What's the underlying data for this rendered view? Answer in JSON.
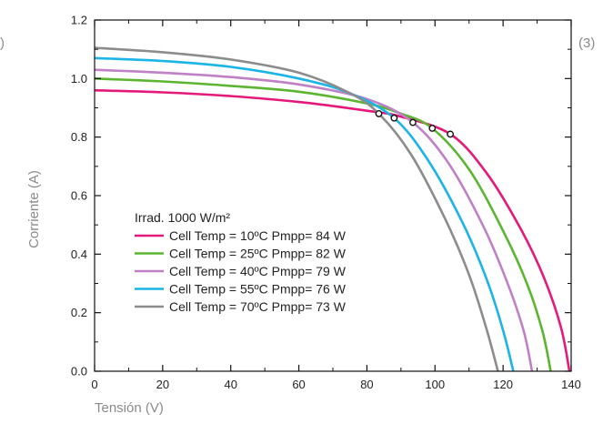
{
  "corner_left": ")",
  "corner_right": "(3)",
  "chart_data": {
    "type": "line",
    "xlabel": "Tensión (V)",
    "ylabel": "Corriente (A)",
    "xlim": [
      0,
      140
    ],
    "ylim": [
      0,
      1.2
    ],
    "xticks": [
      0,
      20,
      40,
      60,
      80,
      100,
      120,
      140
    ],
    "yticks": [
      0.0,
      0.2,
      0.4,
      0.6,
      0.8,
      1.0,
      1.2
    ],
    "xtick_labels": [
      "0",
      "20",
      "40",
      "60",
      "80",
      "100",
      "120",
      "140"
    ],
    "ytick_labels": [
      "0.0",
      "0.2",
      "0.4",
      "0.6",
      "0.8",
      "1.0",
      "1.2"
    ],
    "grid": false,
    "legend_title": "Irrad. 1000 W/m²",
    "legend_position": "lower-left",
    "series": [
      {
        "name": "Cell Temp = 10ºC Pmpp= 84 W",
        "color": "#e5197a",
        "x": [
          0,
          20,
          40,
          60,
          80,
          90,
          104.5,
          115,
          125,
          132,
          137,
          139.5
        ],
        "y": [
          0.96,
          0.953,
          0.94,
          0.92,
          0.89,
          0.87,
          0.81,
          0.68,
          0.49,
          0.32,
          0.15,
          0
        ],
        "mpp": [
          104.5,
          0.81
        ]
      },
      {
        "name": "Cell Temp = 25ºC Pmpp= 82 W",
        "color": "#5cb531",
        "x": [
          0,
          20,
          40,
          60,
          80,
          90,
          99.2,
          110,
          120,
          127,
          131.5,
          134
        ],
        "y": [
          1.0,
          0.99,
          0.975,
          0.955,
          0.915,
          0.88,
          0.83,
          0.69,
          0.48,
          0.3,
          0.14,
          0
        ],
        "mpp": [
          99.2,
          0.83
        ]
      },
      {
        "name": "Cell Temp = 40ºC Pmpp= 79 W",
        "color": "#c080c5",
        "x": [
          0,
          20,
          40,
          60,
          80,
          93.5,
          104,
          114,
          121,
          126,
          128.5
        ],
        "y": [
          1.03,
          1.02,
          1.005,
          0.98,
          0.93,
          0.85,
          0.71,
          0.5,
          0.31,
          0.14,
          0
        ],
        "mpp": [
          93.5,
          0.85
        ]
      },
      {
        "name": "Cell Temp = 55ºC Pmpp= 76 W",
        "color": "#1ab4e6",
        "x": [
          0,
          20,
          40,
          60,
          75,
          88,
          98,
          108,
          115,
          120,
          123
        ],
        "y": [
          1.07,
          1.06,
          1.04,
          1.0,
          0.95,
          0.865,
          0.72,
          0.51,
          0.32,
          0.14,
          0
        ],
        "mpp": [
          88,
          0.865
        ]
      },
      {
        "name": "Cell Temp = 70ºC Pmpp= 73 W",
        "color": "#8c8c8c",
        "x": [
          0,
          20,
          40,
          60,
          75,
          83.5,
          93,
          103,
          110,
          115,
          118.5
        ],
        "y": [
          1.105,
          1.09,
          1.065,
          1.02,
          0.95,
          0.88,
          0.74,
          0.52,
          0.33,
          0.15,
          0
        ],
        "mpp": [
          83.5,
          0.88
        ]
      }
    ]
  }
}
